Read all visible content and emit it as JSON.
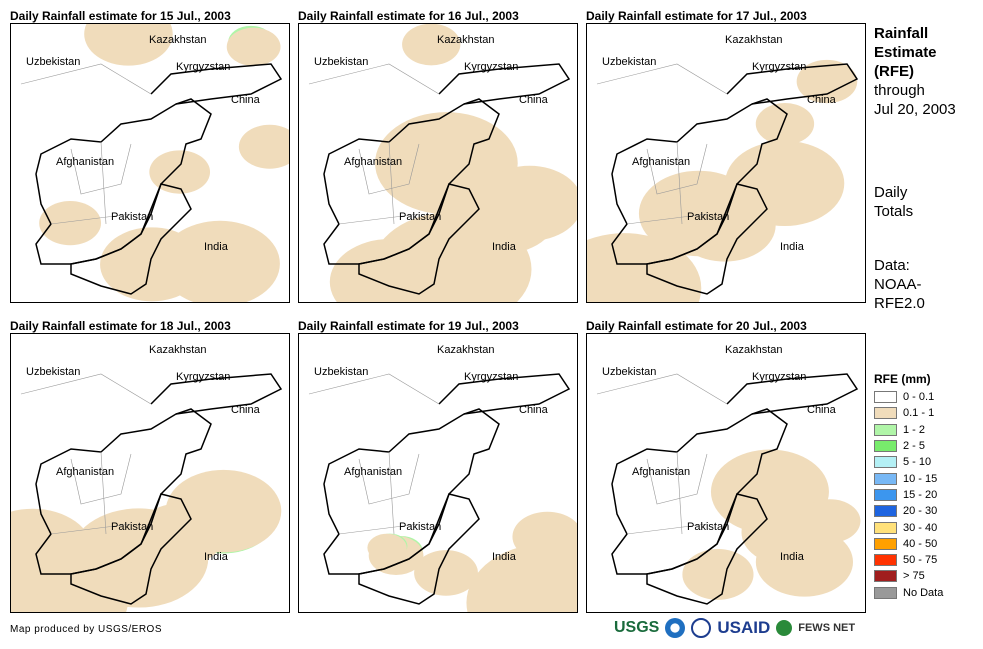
{
  "panels": [
    {
      "title": "Daily Rainfall estimate for 15 Jul., 2003"
    },
    {
      "title": "Daily Rainfall estimate for 16 Jul., 2003"
    },
    {
      "title": "Daily Rainfall estimate for 17 Jul., 2003"
    },
    {
      "title": "Daily Rainfall estimate for 18 Jul., 2003"
    },
    {
      "title": "Daily Rainfall estimate for 19 Jul., 2003"
    },
    {
      "title": "Daily Rainfall estimate for 20 Jul., 2003"
    }
  ],
  "countries": {
    "kazakhstan": "Kazakhstan",
    "uzbekistan": "Uzbekistan",
    "kyrgyzstan": "Kyrgyzstan",
    "china": "China",
    "afghanistan": "Afghanistan",
    "pakistan": "Pakistan",
    "india": "India"
  },
  "side": {
    "title1": "Rainfall",
    "title2": "Estimate",
    "title3": "(RFE)",
    "through": "through",
    "date": "Jul 20, 2003",
    "daily": "Daily",
    "totals": "Totals",
    "data": "Data:",
    "src1": "NOAA-",
    "src2": "RFE2.0"
  },
  "legend": {
    "title": "RFE (mm)",
    "items": [
      {
        "label": "0 - 0.1",
        "color": "#ffffff"
      },
      {
        "label": "0.1 - 1",
        "color": "#f0dcbb"
      },
      {
        "label": "1 - 2",
        "color": "#b0f5a8"
      },
      {
        "label": "2 - 5",
        "color": "#78ec6c"
      },
      {
        "label": "5 - 10",
        "color": "#b4f0f5"
      },
      {
        "label": "10 - 15",
        "color": "#78b8f5"
      },
      {
        "label": "15 - 20",
        "color": "#3c96ee"
      },
      {
        "label": "20 - 30",
        "color": "#1e64e0"
      },
      {
        "label": "30 - 40",
        "color": "#ffe17a"
      },
      {
        "label": "40 - 50",
        "color": "#ffa000"
      },
      {
        "label": "50 - 75",
        "color": "#ff3200"
      },
      {
        "label": "> 75",
        "color": "#a01e1e"
      },
      {
        "label": "No Data",
        "color": "#999999"
      }
    ]
  },
  "credit": "Map produced by USGS/EROS",
  "logos": {
    "usgs": "USGS",
    "usaid": "USAID",
    "fews": "FEWS NET"
  }
}
